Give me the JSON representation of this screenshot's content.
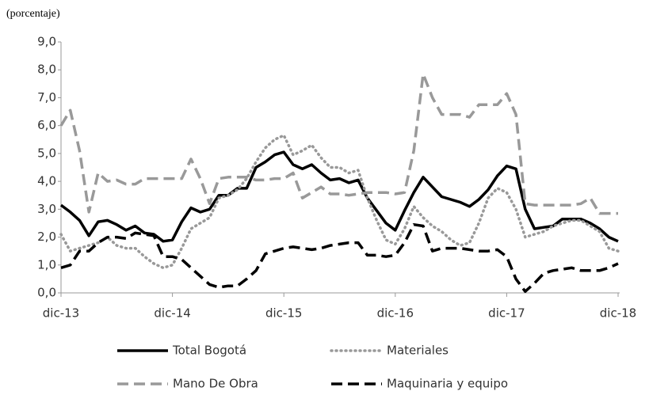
{
  "chart_data": {
    "type": "line",
    "ylabel": "(porcentaje)",
    "categories": [
      "dic-13",
      null,
      null,
      null,
      null,
      null,
      null,
      null,
      null,
      null,
      null,
      null,
      "dic-14",
      null,
      null,
      null,
      null,
      null,
      null,
      null,
      null,
      null,
      null,
      null,
      "dic-15",
      null,
      null,
      null,
      null,
      null,
      null,
      null,
      null,
      null,
      null,
      null,
      "dic-16",
      null,
      null,
      null,
      null,
      null,
      null,
      null,
      null,
      null,
      null,
      null,
      "dic-17",
      null,
      null,
      null,
      null,
      null,
      null,
      null,
      null,
      null,
      null,
      null,
      "dic-18"
    ],
    "ylim": [
      0,
      9
    ],
    "yticks": [
      {
        "value": 0,
        "label": "0,0"
      },
      {
        "value": 1,
        "label": "1,0"
      },
      {
        "value": 2,
        "label": "2,0"
      },
      {
        "value": 3,
        "label": "3,0"
      },
      {
        "value": 4,
        "label": "4,0"
      },
      {
        "value": 5,
        "label": "5,0"
      },
      {
        "value": 6,
        "label": "6,0"
      },
      {
        "value": 7,
        "label": "7,0"
      },
      {
        "value": 8,
        "label": "8,0"
      },
      {
        "value": 9,
        "label": "9,0"
      }
    ],
    "grid": false,
    "legend": "bottom",
    "series": [
      {
        "name": "Total Bogotá",
        "color": "#000000",
        "style": "solid",
        "values": [
          3.15,
          2.9,
          2.6,
          2.05,
          2.55,
          2.6,
          2.45,
          2.25,
          2.4,
          2.15,
          2.1,
          1.85,
          1.9,
          2.55,
          3.05,
          2.9,
          3.0,
          3.5,
          3.5,
          3.75,
          3.75,
          4.5,
          4.7,
          4.95,
          5.05,
          4.6,
          4.45,
          4.6,
          4.3,
          4.05,
          4.1,
          3.95,
          4.05,
          3.4,
          2.95,
          2.5,
          2.25,
          2.95,
          3.6,
          4.15,
          3.8,
          3.45,
          3.35,
          3.25,
          3.1,
          3.35,
          3.7,
          4.2,
          4.55,
          4.45,
          3.0,
          2.3,
          2.35,
          2.4,
          2.65,
          2.65,
          2.65,
          2.5,
          2.3,
          2.0,
          1.85
        ]
      },
      {
        "name": "Materiales",
        "color": "#999999",
        "style": "dotted",
        "values": [
          2.1,
          1.5,
          1.6,
          1.7,
          1.8,
          2.0,
          1.7,
          1.6,
          1.6,
          1.3,
          1.05,
          0.9,
          1.0,
          1.6,
          2.3,
          2.5,
          2.7,
          3.4,
          3.5,
          3.7,
          4.1,
          4.7,
          5.2,
          5.5,
          5.65,
          4.95,
          5.1,
          5.3,
          4.85,
          4.5,
          4.5,
          4.3,
          4.4,
          3.4,
          2.6,
          1.9,
          1.75,
          2.3,
          3.1,
          2.7,
          2.4,
          2.2,
          1.9,
          1.7,
          1.8,
          2.5,
          3.4,
          3.75,
          3.6,
          3.0,
          2.0,
          2.1,
          2.2,
          2.4,
          2.5,
          2.6,
          2.6,
          2.4,
          2.2,
          1.6,
          1.5
        ]
      },
      {
        "name": "Mano De Obra",
        "color": "#999999",
        "style": "dashed",
        "values": [
          6.0,
          6.55,
          5.1,
          2.9,
          4.3,
          4.0,
          4.05,
          3.9,
          3.9,
          4.1,
          4.1,
          4.1,
          4.1,
          4.1,
          4.8,
          4.1,
          3.2,
          4.1,
          4.15,
          4.15,
          4.15,
          4.05,
          4.05,
          4.1,
          4.1,
          4.3,
          3.4,
          3.6,
          3.8,
          3.55,
          3.55,
          3.5,
          3.55,
          3.6,
          3.6,
          3.6,
          3.55,
          3.6,
          5.1,
          7.85,
          7.0,
          6.4,
          6.4,
          6.4,
          6.3,
          6.75,
          6.75,
          6.75,
          7.15,
          6.4,
          3.2,
          3.15,
          3.15,
          3.15,
          3.15,
          3.15,
          3.2,
          3.4,
          2.85,
          2.85,
          2.85
        ]
      },
      {
        "name": "Maquinaria y equipo",
        "color": "#000000",
        "style": "dashed",
        "values": [
          0.9,
          1.0,
          1.5,
          1.5,
          1.8,
          2.0,
          2.0,
          1.95,
          2.15,
          2.1,
          2.05,
          1.3,
          1.3,
          1.2,
          0.9,
          0.6,
          0.3,
          0.2,
          0.25,
          0.25,
          0.5,
          0.8,
          1.4,
          1.5,
          1.6,
          1.65,
          1.6,
          1.55,
          1.6,
          1.7,
          1.75,
          1.8,
          1.8,
          1.35,
          1.35,
          1.3,
          1.35,
          1.8,
          2.45,
          2.4,
          1.5,
          1.6,
          1.6,
          1.6,
          1.55,
          1.5,
          1.5,
          1.55,
          1.3,
          0.5,
          0.05,
          0.35,
          0.7,
          0.8,
          0.85,
          0.9,
          0.8,
          0.8,
          0.8,
          0.9,
          1.05
        ]
      }
    ]
  }
}
